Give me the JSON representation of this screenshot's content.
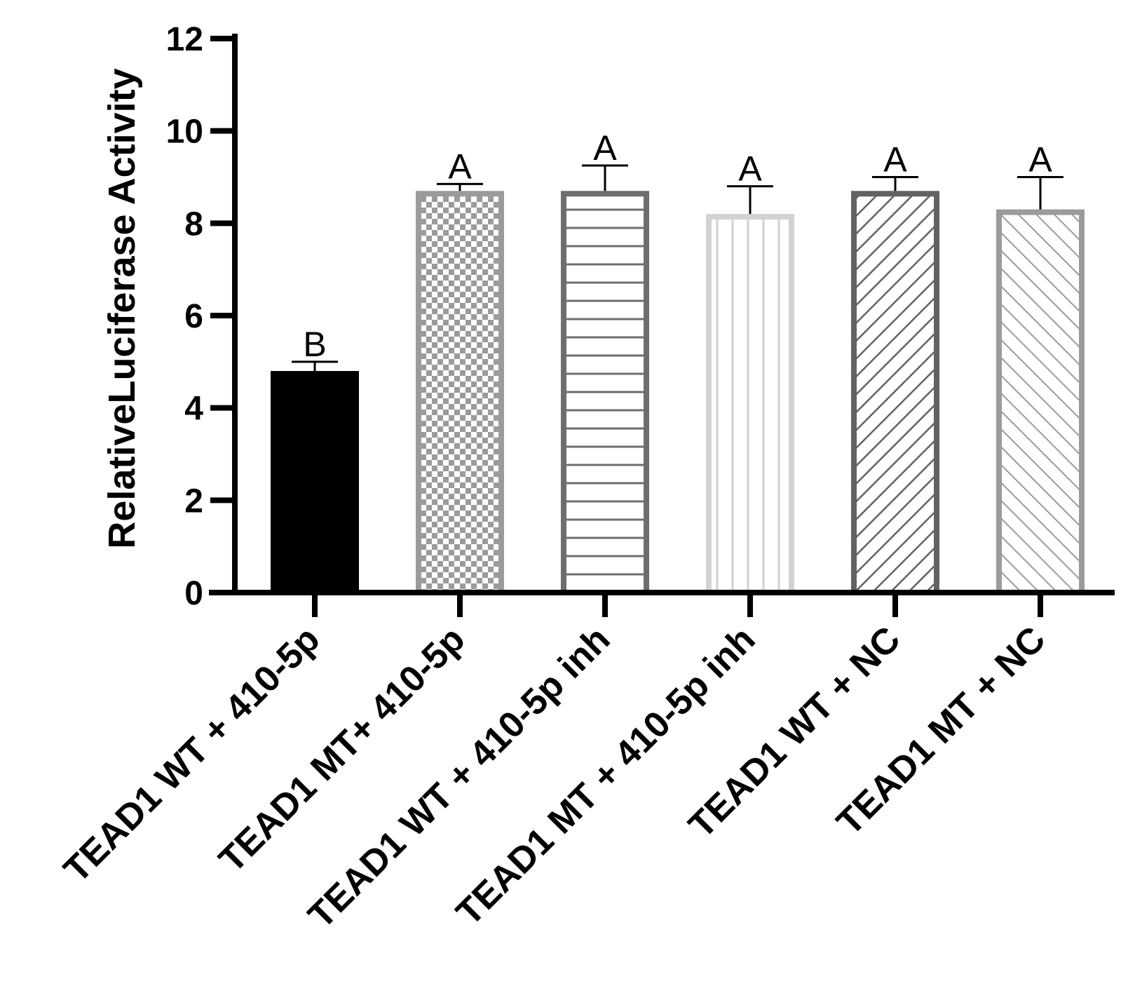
{
  "chart_data": {
    "type": "bar",
    "title": "",
    "xlabel": "",
    "ylabel": "RelativeLuciferase Activity",
    "ylim": [
      0,
      12
    ],
    "yticks": [
      "0",
      "2",
      "4",
      "6",
      "8",
      "10",
      "12"
    ],
    "grid": false,
    "categories": [
      "TEAD1 WT + 410-5p",
      "TEAD1 MT+ 410-5p",
      "TEAD1 WT + 410-5p inh",
      "TEAD1 MT + 410-5p inh",
      "TEAD1 WT + NC",
      "TEAD1 MT + NC"
    ],
    "values": [
      4.8,
      8.7,
      8.7,
      8.2,
      8.7,
      8.3
    ],
    "error": [
      0.2,
      0.15,
      0.55,
      0.6,
      0.3,
      0.7
    ],
    "significance": [
      "B",
      "A",
      "A",
      "A",
      "A",
      "A"
    ],
    "patterns": [
      "solid",
      "checker",
      "horizontal",
      "vertical",
      "diagonal-up",
      "diagonal-down"
    ],
    "colors": {
      "axis": "#000000",
      "bar_1_fill": "#000000",
      "bar_2_stroke": "#9b9b9b",
      "bar_3_stroke": "#6e6e6e",
      "bar_4_stroke": "#d2d2d2",
      "bar_5_stroke": "#626262",
      "bar_6_stroke": "#9b9b9b"
    }
  }
}
